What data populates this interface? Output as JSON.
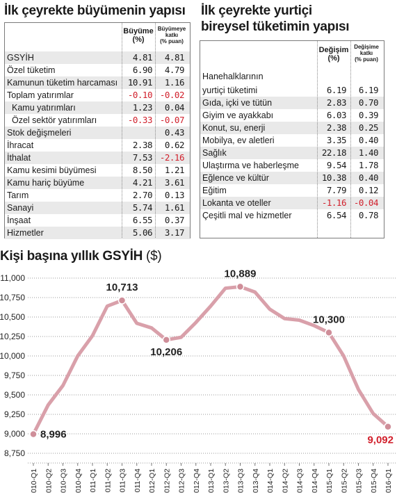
{
  "table1": {
    "title": "İlk çeyrekte büyümenin yapısı",
    "col1": {
      "line1": "Büyüme",
      "line2": "(%)"
    },
    "col2": {
      "line1": "Büyümeye",
      "line2": "katkı",
      "line3": "(% puan)"
    },
    "rows": [
      {
        "label": "GSYİH",
        "v1": "4.81",
        "v2": "4.81"
      },
      {
        "label": "Özel tüketim",
        "v1": "6.90",
        "v2": "4.79"
      },
      {
        "label": "Kamunun tüketim harcaması",
        "v1": "10.91",
        "v2": "1.16"
      },
      {
        "label": "Toplam yatırımlar",
        "v1": "-0.10",
        "v2": "-0.02"
      },
      {
        "label": "Kamu yatırımları",
        "v1": "1.23",
        "v2": "0.04",
        "indent": true
      },
      {
        "label": "Özel sektör yatırımları",
        "v1": "-0.33",
        "v2": "-0.07",
        "indent": true
      },
      {
        "label": "Stok değişmeleri",
        "v1": "",
        "v2": "0.43"
      },
      {
        "label": "İhracat",
        "v1": "2.38",
        "v2": "0.62"
      },
      {
        "label": "İthalat",
        "v1": "7.53",
        "v2": "-2.16"
      },
      {
        "label": "Kamu kesimi büyümesi",
        "v1": "8.50",
        "v2": "1.21"
      },
      {
        "label": "Kamu hariç büyüme",
        "v1": "4.21",
        "v2": "3.61"
      },
      {
        "label": "Tarım",
        "v1": "2.70",
        "v2": "0.13"
      },
      {
        "label": "Sanayi",
        "v1": "5.74",
        "v2": "1.61"
      },
      {
        "label": "İnşaat",
        "v1": "6.55",
        "v2": "0.37"
      },
      {
        "label": "Hizmetler",
        "v1": "5.06",
        "v2": "3.17"
      }
    ]
  },
  "table2": {
    "title_line1": "İlk çeyrekte yurtiçi",
    "title_line2": "bireysel tüketimin yapısı",
    "col1": {
      "line1": "Değişim",
      "line2": "(%)"
    },
    "col2": {
      "line1": "Değişime",
      "line2": "katkı",
      "line3": "(% puan)"
    },
    "first_row_label_line1": "Hanehalklarının",
    "rows": [
      {
        "label": "yurtiçi tüketimi",
        "v1": "6.19",
        "v2": "6.19"
      },
      {
        "label": "Gıda, içki ve tütün",
        "v1": "2.83",
        "v2": "0.70"
      },
      {
        "label": "Giyim ve ayakkabı",
        "v1": "6.03",
        "v2": "0.39"
      },
      {
        "label": "Konut, su, enerji",
        "v1": "2.38",
        "v2": "0.25"
      },
      {
        "label": "Mobilya, ev aletleri",
        "v1": "3.35",
        "v2": "0.40"
      },
      {
        "label": "Sağlık",
        "v1": "22.18",
        "v2": "1.40"
      },
      {
        "label": "Ulaştırma ve haberleşme",
        "v1": "9.54",
        "v2": "1.78"
      },
      {
        "label": "Eğlence ve kültür",
        "v1": "10.38",
        "v2": "0.40"
      },
      {
        "label": "Eğitim",
        "v1": "7.79",
        "v2": "0.12"
      },
      {
        "label": "Lokanta ve oteller",
        "v1": "-1.16",
        "v2": "-0.04"
      },
      {
        "label": "Çeşitli mal ve hizmetler",
        "v1": "6.54",
        "v2": "0.78"
      }
    ]
  },
  "chart_data": {
    "type": "line",
    "title": "Kişi başına yıllık GSYİH",
    "unit": "($)",
    "x": [
      "010-Q1",
      "010-Q2",
      "010-Q3",
      "010-Q4",
      "011-Q1",
      "011-Q2",
      "011-Q3",
      "011-Q4",
      "012-Q1",
      "012-Q2",
      "012-Q3",
      "012-Q4",
      "013-Q1",
      "013-Q2",
      "013-Q3",
      "013-Q4",
      "014-Q1",
      "014-Q2",
      "014-Q3",
      "014-Q4",
      "015-Q1",
      "015-Q2",
      "015-Q3",
      "015-Q4",
      "016-Q1"
    ],
    "values": [
      8996,
      9370,
      9620,
      10000,
      10260,
      10640,
      10713,
      10420,
      10360,
      10206,
      10240,
      10430,
      10640,
      10870,
      10889,
      10820,
      10600,
      10480,
      10460,
      10390,
      10300,
      10000,
      9570,
      9260,
      9092
    ],
    "yticks": [
      "8,750",
      "9,000",
      "9,250",
      "9,500",
      "9,750",
      "10,000",
      "10,250",
      "10,500",
      "10,750",
      "11,000"
    ],
    "ylim": [
      8750,
      11000
    ],
    "annotations": [
      {
        "index": 0,
        "text": "8,996"
      },
      {
        "index": 6,
        "text": "10,713"
      },
      {
        "index": 9,
        "text": "10,206"
      },
      {
        "index": 14,
        "text": "10,889"
      },
      {
        "index": 20,
        "text": "10,300"
      },
      {
        "index": 24,
        "text": "9,092",
        "highlight": true
      }
    ],
    "line_color": "#d9a0aa",
    "marker_color": "#cf8e99",
    "highlight_color": "#d11f2b",
    "grid": "dotted horizontal"
  }
}
